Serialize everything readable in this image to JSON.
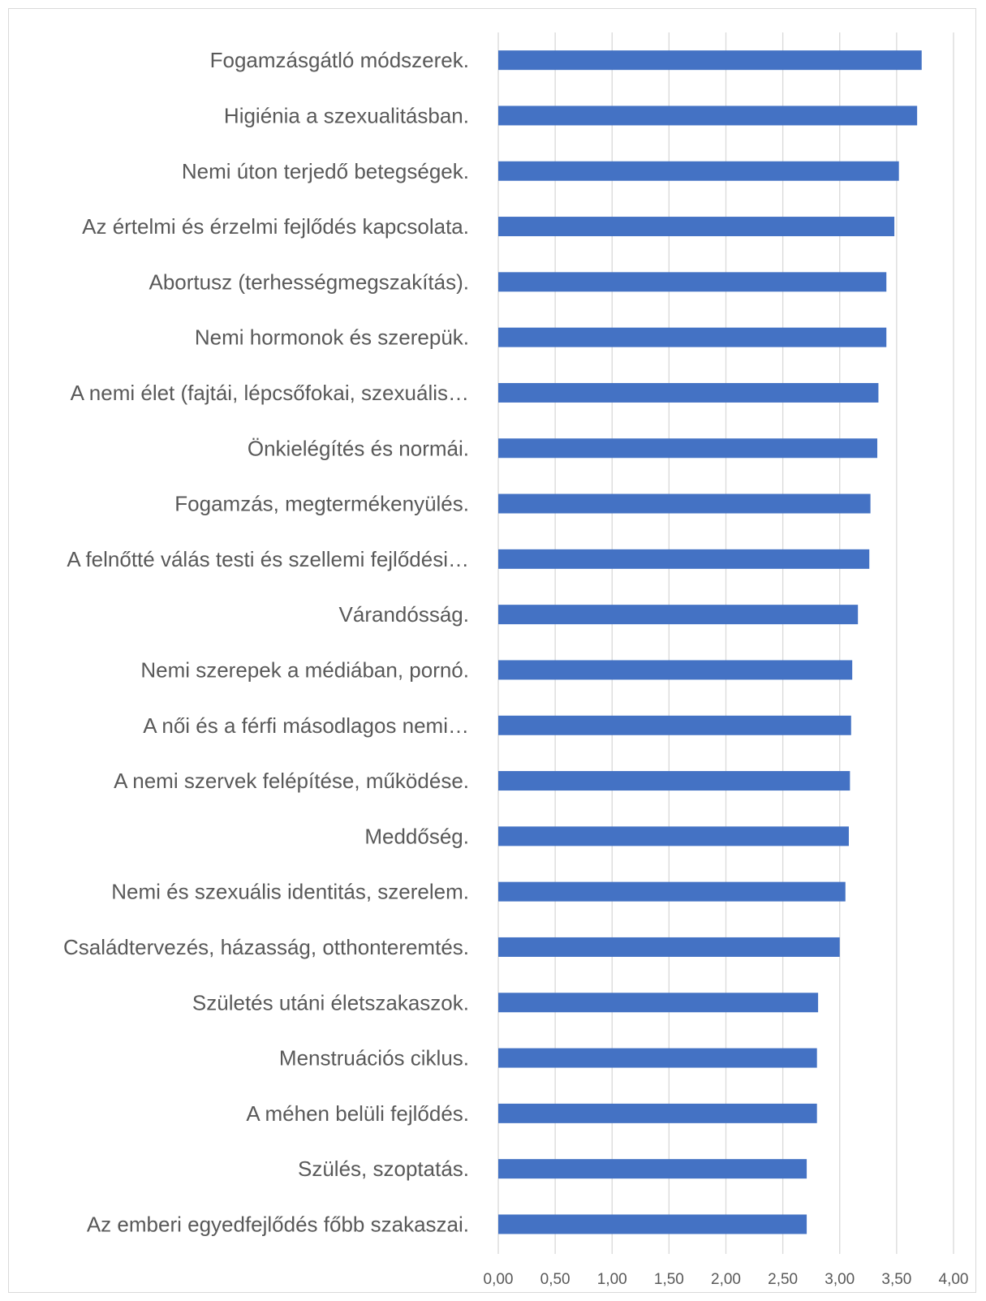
{
  "chart_data": {
    "type": "bar",
    "orientation": "horizontal",
    "title": "",
    "xlabel": "",
    "ylabel": "",
    "xlim": [
      0,
      4
    ],
    "x_ticks": [
      "0,00",
      "0,50",
      "1,00",
      "1,50",
      "2,00",
      "2,50",
      "3,00",
      "3,50",
      "4,00"
    ],
    "grid": "vertical",
    "legend": "none",
    "bar_color": "#4472C4",
    "categories": [
      "Fogamzásgátló módszerek.",
      "Higiénia a szexualitásban.",
      "Nemi úton terjedő betegségek.",
      "Az értelmi és érzelmi fejlődés kapcsolata.",
      "Abortusz (terhességmegszakítás).",
      "Nemi hormonok és szerepük.",
      "A nemi élet (fajtái, lépcsőfokai, szexuális…",
      "Önkielégítés és normái.",
      "Fogamzás, megtermékenyülés.",
      "A felnőtté válás testi és szellemi fejlődési…",
      "Várandósság.",
      "Nemi szerepek a médiában, pornó.",
      "A női és a férfi másodlagos nemi…",
      "A nemi szervek felépítése, működése.",
      "Meddőség.",
      "Nemi és szexuális identitás, szerelem.",
      "Családtervezés, házasság, otthonteremtés.",
      "Születés utáni életszakaszok.",
      "Menstruációs ciklus.",
      "A méhen belüli fejlődés.",
      "Szülés, szoptatás.",
      "Az emberi egyedfejlődés főbb szakaszai."
    ],
    "values": [
      3.72,
      3.68,
      3.52,
      3.48,
      3.41,
      3.41,
      3.34,
      3.33,
      3.27,
      3.26,
      3.16,
      3.11,
      3.1,
      3.09,
      3.08,
      3.05,
      3.0,
      2.81,
      2.8,
      2.8,
      2.71,
      2.71
    ]
  }
}
